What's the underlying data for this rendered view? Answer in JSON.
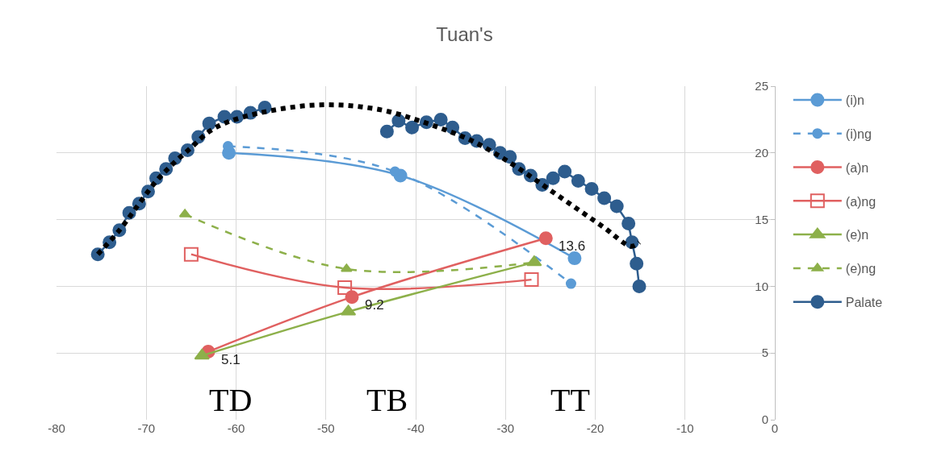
{
  "chart_data": {
    "type": "line",
    "title": "Tuan's",
    "xlim": [
      -80,
      0
    ],
    "xticks": [
      -80,
      -70,
      -60,
      -50,
      -40,
      -30,
      -20,
      -10,
      0
    ],
    "ylim": [
      0,
      25
    ],
    "yticks": [
      0,
      5,
      10,
      15,
      20,
      25
    ],
    "grid": true,
    "legend": "right",
    "annotations": [
      "TD",
      "TB",
      "TT"
    ],
    "series": [
      {
        "name": "(i)n",
        "color": "#5b9bd5",
        "marker": "circle",
        "line_style": "solid",
        "x": [
          -60.8,
          -41.7,
          -22.3
        ],
        "values": [
          20.0,
          18.3,
          12.1
        ]
      },
      {
        "name": "(i)ng",
        "color": "#5b9bd5",
        "marker": "circle",
        "line_style": "dashed",
        "x": [
          -60.9,
          -42.3,
          -22.7
        ],
        "values": [
          20.5,
          18.6,
          10.2
        ]
      },
      {
        "name": "(a)n",
        "color": "#e06060",
        "marker": "circle",
        "line_style": "solid",
        "x": [
          -63.1,
          -47.1,
          -25.5
        ],
        "values": [
          5.1,
          9.2,
          13.6
        ],
        "value_labels": [
          "5.1",
          "9.2",
          "13.6"
        ]
      },
      {
        "name": "(a)ng",
        "color": "#e06060",
        "marker": "square",
        "line_style": "solid",
        "x": [
          -65.0,
          -47.9,
          -27.1
        ],
        "values": [
          12.4,
          9.9,
          10.5
        ]
      },
      {
        "name": "(e)n",
        "color": "#8db04a",
        "marker": "triangle",
        "line_style": "solid",
        "x": [
          -63.8,
          -47.5,
          -26.8
        ],
        "values": [
          4.8,
          8.1,
          11.8
        ]
      },
      {
        "name": "(e)ng",
        "color": "#8db04a",
        "marker": "triangle",
        "line_style": "dashed",
        "x": [
          -65.7,
          -47.7,
          -26.7
        ],
        "values": [
          15.4,
          11.3,
          11.8
        ]
      },
      {
        "name": "Palate",
        "color": "#2e5d8e",
        "marker": "circle",
        "line_style": "solid",
        "x": [
          -75.4,
          -74.1,
          -73.0,
          -71.9,
          -70.8,
          -69.8,
          -68.9,
          -67.8,
          -66.8,
          -65.4,
          -64.2,
          -63.0,
          -61.3,
          -59.9,
          -58.4,
          -56.8,
          -50.0,
          -43.2,
          -41.9,
          -40.4,
          -38.8,
          -37.2,
          -35.9,
          -34.5,
          -33.2,
          -31.8,
          -30.6,
          -29.5,
          -28.5,
          -27.2,
          -25.9,
          -24.7,
          -23.4,
          -21.9,
          -20.4,
          -19.0,
          -17.6,
          -16.3,
          -15.9,
          -15.4,
          -15.1
        ],
        "values": [
          12.4,
          13.3,
          14.2,
          15.5,
          16.2,
          17.1,
          18.1,
          18.8,
          19.6,
          20.2,
          21.2,
          22.2,
          22.7,
          22.7,
          23.0,
          23.4,
          null,
          21.6,
          22.4,
          21.9,
          22.3,
          22.5,
          21.9,
          21.1,
          20.9,
          20.6,
          20.0,
          19.7,
          18.8,
          18.3,
          17.6,
          18.1,
          18.6,
          17.9,
          17.3,
          16.6,
          16.0,
          14.7,
          13.3,
          11.7,
          10.0
        ]
      },
      {
        "color": "#000000",
        "marker": "none",
        "line_style": "dotted",
        "x": [
          -75.4,
          -73,
          -71,
          -69,
          -67,
          -65,
          -63,
          -61,
          -58,
          -55,
          -52,
          -49,
          -46,
          -43,
          -40,
          -37,
          -34,
          -31,
          -28,
          -25,
          -22,
          -19,
          -16,
          -15.1
        ],
        "values": [
          12.4,
          14.2,
          16.0,
          17.8,
          19.2,
          20.4,
          21.6,
          22.3,
          22.9,
          23.3,
          23.55,
          23.6,
          23.45,
          23.1,
          22.5,
          21.8,
          21.0,
          19.9,
          18.6,
          17.2,
          15.8,
          14.4,
          13.0,
          13.3
        ]
      }
    ]
  }
}
